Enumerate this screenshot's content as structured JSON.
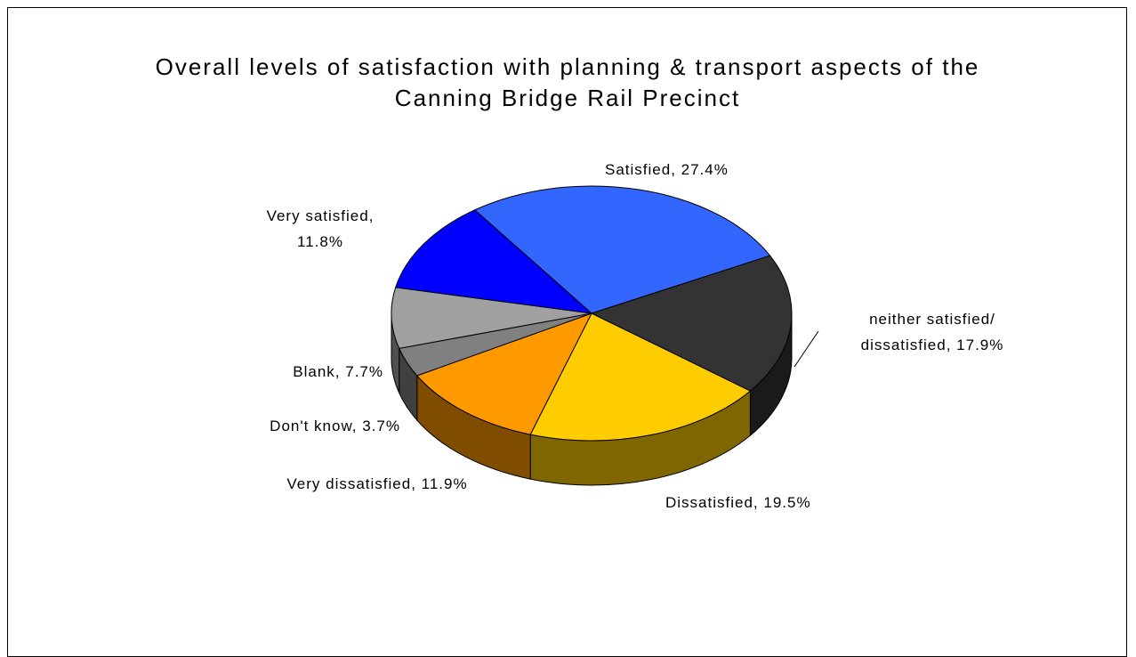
{
  "chart_data": {
    "type": "pie",
    "title": "Overall levels of satisfaction with planning & transport aspects of the Canning Bridge Rail Precinct",
    "values": [
      27.4,
      17.9,
      19.5,
      11.9,
      3.7,
      7.7,
      11.8
    ],
    "value_labels": [
      "Satisfied, 27.4%",
      "neither satisfied/ dissatisfied, 17.9%",
      "Dissatisfied, 19.5%",
      "Very dissatisfied, 11.9%",
      "Don't know, 3.7%",
      "Blank, 7.7%",
      "Very satisfied, 11.8%"
    ],
    "colors": [
      "#3366ff",
      "#333333",
      "#ffcc00",
      "#ff9900",
      "#808080",
      "#a0a0a0",
      "#0000ff"
    ]
  }
}
